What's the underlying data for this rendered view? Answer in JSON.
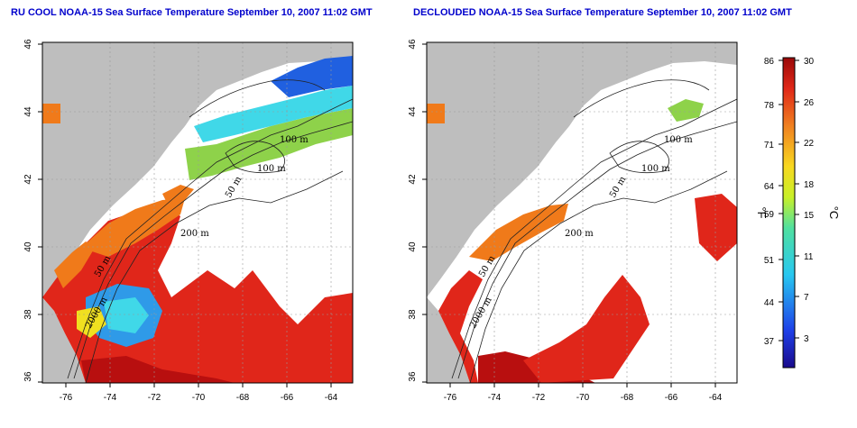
{
  "maps": [
    {
      "title": "RU COOL NOAA-15 Sea Surface Temperature September 10, 2007 11:02 GMT",
      "contour_labels": [
        "100 m",
        "100 m",
        "50 m",
        "200 m",
        "50 m",
        "2000 m"
      ]
    },
    {
      "title": "DECLOUDED NOAA-15 Sea Surface Temperature September 10, 2007 11:02 GMT",
      "contour_labels": [
        "100 m",
        "100 m",
        "50 m",
        "200 m",
        "50 m",
        "2000 m"
      ]
    }
  ],
  "axes": {
    "lon_ticks": [
      "-76",
      "-74",
      "-72",
      "-70",
      "-68",
      "-66",
      "-64"
    ],
    "lat_ticks": [
      "46",
      "44",
      "42",
      "40",
      "38",
      "36"
    ]
  },
  "colorbar": {
    "f_labels": [
      "86",
      "78",
      "71",
      "64",
      "59",
      "51",
      "44",
      "37"
    ],
    "c_labels": [
      "30",
      "26",
      "22",
      "18",
      "15",
      "11",
      "7",
      "3"
    ],
    "f_unit": "°F",
    "c_unit": "°C"
  },
  "colors": {
    "land": "#bebebe",
    "cloud": "#ffffff",
    "warm": "#e0261a",
    "hot": "#b80f0f",
    "orange": "#f07a1a",
    "yellow": "#f0e020",
    "green": "#8ed24a",
    "cyan": "#40d8e8",
    "blue": "#2060e0",
    "title": "#0000cc"
  }
}
